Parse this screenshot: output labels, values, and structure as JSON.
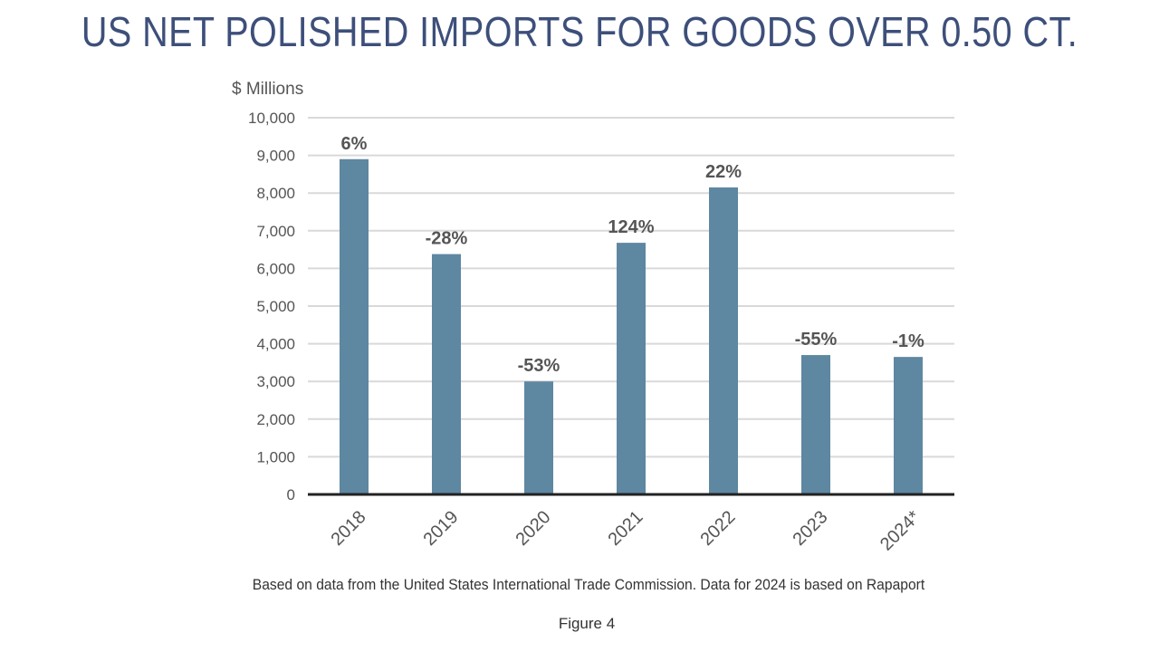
{
  "colors": {
    "title": "#3d4f7a",
    "bar": "#5e87a1",
    "grid": "#d9d9d9",
    "axis": "#222222",
    "text": "#555555"
  },
  "chart_data": {
    "type": "bar",
    "title": "US NET POLISHED IMPORTS FOR GOODS OVER 0.50 CT.",
    "ylabel": "$ Millions",
    "xlabel": "",
    "ylim": [
      0,
      10000
    ],
    "yticks": [
      0,
      1000,
      2000,
      3000,
      4000,
      5000,
      6000,
      7000,
      8000,
      9000,
      10000
    ],
    "ytick_labels": [
      "0",
      "1,000",
      "2,000",
      "3,000",
      "4,000",
      "5,000",
      "6,000",
      "7,000",
      "8,000",
      "9,000",
      "10,000"
    ],
    "grid": true,
    "categories": [
      "2018",
      "2019",
      "2020",
      "2021",
      "2022",
      "2023",
      "2024*"
    ],
    "values": [
      8900,
      6380,
      3000,
      6680,
      8150,
      3700,
      3650
    ],
    "data_labels": [
      "6%",
      "-28%",
      "-53%",
      "124%",
      "22%",
      "-55%",
      "-1%"
    ]
  },
  "footnote": "Based on data from the United States International Trade Commission. Data for 2024 is based on Rapaport",
  "figure_label": "Figure 4"
}
